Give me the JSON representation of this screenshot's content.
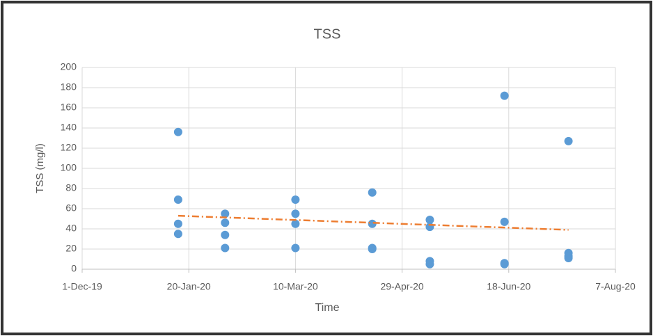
{
  "chart_data": {
    "type": "scatter",
    "title": "TSS",
    "x_label": "Time",
    "y_label": "TSS (mg/l)",
    "series": [
      {
        "color": "#5b9bd5",
        "x": [
          "2020-01-15",
          "2020-01-15",
          "2020-01-15",
          "2020-01-15",
          "2020-02-06",
          "2020-02-06",
          "2020-02-06",
          "2020-02-06",
          "2020-03-10",
          "2020-03-10",
          "2020-03-10",
          "2020-03-10",
          "2020-04-15",
          "2020-04-15",
          "2020-04-15",
          "2020-04-15",
          "2020-05-12",
          "2020-05-12",
          "2020-05-12",
          "2020-05-12",
          "2020-06-16",
          "2020-06-16",
          "2020-06-16",
          "2020-06-16",
          "2020-07-16",
          "2020-07-16",
          "2020-07-16",
          "2020-07-16"
        ],
        "values": [
          136,
          69,
          45,
          35,
          55,
          46,
          34,
          21,
          69,
          55,
          45,
          21,
          76,
          45,
          21,
          20,
          49,
          42,
          8,
          5,
          172,
          47,
          6,
          5,
          127,
          16,
          13,
          11
        ]
      }
    ],
    "trendline": {
      "color": "#ed7d31",
      "x": [
        "2020-01-15",
        "2020-07-16"
      ],
      "values": [
        53,
        39
      ]
    },
    "xlim": [
      "2019-12-01",
      "2020-08-07"
    ],
    "xticks": [
      {
        "value": "2019-12-01",
        "label": "1-Dec-19"
      },
      {
        "value": "2020-01-20",
        "label": "20-Jan-20"
      },
      {
        "value": "2020-03-10",
        "label": "10-Mar-20"
      },
      {
        "value": "2020-04-29",
        "label": "29-Apr-20"
      },
      {
        "value": "2020-06-18",
        "label": "18-Jun-20"
      },
      {
        "value": "2020-08-07",
        "label": "7-Aug-20"
      }
    ],
    "ylim": [
      0,
      200
    ],
    "yticks": [
      0,
      20,
      40,
      60,
      80,
      100,
      120,
      140,
      160,
      180,
      200
    ],
    "grid": true
  }
}
